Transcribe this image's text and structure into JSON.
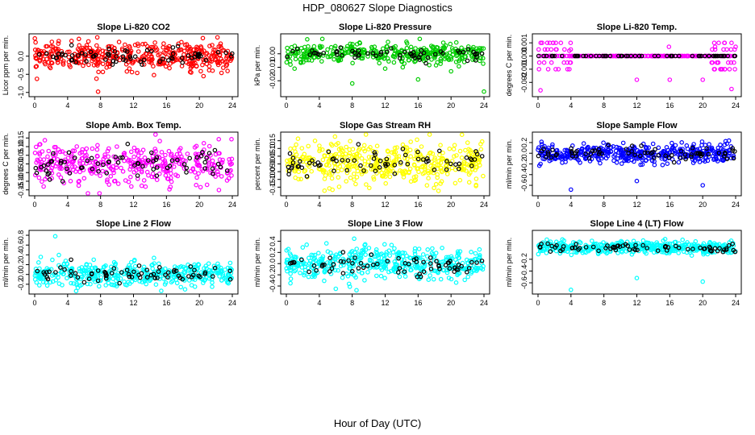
{
  "title": "HDP_080627  Slope Diagnostics",
  "xlabel": "Hour of Day (UTC)",
  "colors": {
    "highlight": "#000000",
    "frame": "#000000"
  },
  "chart_data": [
    {
      "type": "scatter",
      "title": "Slope Li-820 CO2",
      "ylabel": "Licor ppm per min.",
      "color": "#ff0000",
      "xlim": [
        0,
        24
      ],
      "ylim": [
        -1.05,
        0.55
      ],
      "xticks": [
        0,
        4,
        8,
        12,
        16,
        20,
        24
      ],
      "yticks": [
        -1.0,
        -0.5,
        0.0
      ],
      "spread": 0.18,
      "n": 420,
      "highlight_n": 70,
      "outliers": [
        [
          7.5,
          -0.62
        ],
        [
          7.7,
          -0.98
        ],
        [
          7.6,
          0.52
        ],
        [
          19.0,
          -0.45
        ],
        [
          20.5,
          -0.55
        ],
        [
          11.2,
          -0.42
        ]
      ]
    },
    {
      "type": "scatter",
      "title": "Slope Li-820 Pressure",
      "ylabel": "kPa per min.",
      "color": "#00cc00",
      "xlim": [
        0,
        24
      ],
      "ylim": [
        -0.03,
        0.013
      ],
      "xticks": [
        0,
        4,
        8,
        12,
        16,
        20,
        24
      ],
      "yticks": [
        -0.02,
        -0.01,
        0.0
      ],
      "spread": 0.0035,
      "n": 380,
      "highlight_n": 60,
      "outliers": [
        [
          8.0,
          -0.022
        ],
        [
          16.0,
          -0.019
        ],
        [
          20.0,
          -0.013
        ],
        [
          24.0,
          -0.028
        ],
        [
          0.5,
          -0.008
        ],
        [
          1.0,
          -0.011
        ],
        [
          12.0,
          -0.011
        ],
        [
          16.2,
          0.011
        ]
      ]
    },
    {
      "type": "scatter",
      "title": "Slope Li-820 Temp.",
      "ylabel": "degrees C per min.",
      "color": "#ff00ff",
      "xlim": [
        0,
        24
      ],
      "ylim": [
        -0.0029,
        0.0015
      ],
      "xticks": [
        0,
        4,
        8,
        12,
        16,
        20,
        24
      ],
      "yticks": [
        -0.002,
        -0.001,
        0.0,
        0.001
      ],
      "spread": 0.0,
      "n": 300,
      "highlight_n": 60,
      "quantized": true,
      "outliers": [
        [
          0.3,
          -0.0026
        ],
        [
          12.0,
          -0.0018
        ],
        [
          16.0,
          -0.0018
        ],
        [
          20.0,
          -0.0018
        ],
        [
          23.5,
          -0.0025
        ],
        [
          0.5,
          0.001
        ],
        [
          15.9,
          0.0007
        ],
        [
          21.5,
          0.0007
        ],
        [
          24.0,
          0.0007
        ],
        [
          3.8,
          0.0004
        ]
      ]
    },
    {
      "type": "scatter",
      "title": "Slope Amb. Box Temp.",
      "ylabel": "degrees C per min.",
      "color": "#ff00ff",
      "xlim": [
        0,
        24
      ],
      "ylim": [
        -0.17,
        0.17
      ],
      "xticks": [
        0,
        4,
        8,
        12,
        16,
        20,
        24
      ],
      "yticks": [
        -0.15,
        -0.1,
        -0.05,
        0.0,
        0.05,
        0.1,
        0.15
      ],
      "spread": 0.06,
      "n": 380,
      "highlight_n": 70,
      "outliers": []
    },
    {
      "type": "scatter",
      "title": "Slope Gas Stream RH",
      "ylabel": "percent per min.",
      "color": "#ffff00",
      "xlim": [
        0,
        24
      ],
      "ylim": [
        -0.19,
        0.19
      ],
      "xticks": [
        0,
        4,
        8,
        12,
        16,
        20,
        24
      ],
      "yticks": [
        -0.15,
        -0.1,
        -0.05,
        0.0,
        0.05,
        0.1,
        0.15
      ],
      "spread": 0.065,
      "n": 440,
      "highlight_n": 70,
      "outliers": []
    },
    {
      "type": "scatter",
      "title": "Slope Sample Flow",
      "ylabel": "ml/min per min.",
      "color": "#0000ff",
      "xlim": [
        0,
        24
      ],
      "ylim": [
        -0.75,
        0.35
      ],
      "xticks": [
        0,
        4,
        8,
        12,
        16,
        20,
        24
      ],
      "yticks": [
        -0.6,
        -0.4,
        -0.2,
        0.0,
        0.2
      ],
      "spread": 0.09,
      "n": 420,
      "highlight_n": 70,
      "outliers": [
        [
          4.0,
          -0.68
        ],
        [
          20.0,
          -0.6
        ],
        [
          12.0,
          -0.52
        ],
        [
          0.3,
          -0.2
        ]
      ]
    },
    {
      "type": "scatter",
      "title": "Slope Line 2 Flow",
      "ylabel": "ml/min per min.",
      "color": "#00ffff",
      "xlim": [
        0,
        24
      ],
      "ylim": [
        -0.35,
        0.85
      ],
      "xticks": [
        0,
        4,
        8,
        12,
        16,
        20,
        24
      ],
      "yticks": [
        -0.2,
        0.0,
        0.2,
        0.4,
        0.6,
        0.8
      ],
      "spread": 0.12,
      "n": 420,
      "highlight_n": 70,
      "outliers": [
        [
          2.5,
          0.78
        ]
      ]
    },
    {
      "type": "scatter",
      "title": "Slope Line 3 Flow",
      "ylabel": "ml/min per min.",
      "color": "#00ffff",
      "xlim": [
        0,
        24
      ],
      "ylim": [
        -0.5,
        0.55
      ],
      "xticks": [
        0,
        4,
        8,
        12,
        16,
        20,
        24
      ],
      "yticks": [
        -0.4,
        -0.2,
        0.0,
        0.2,
        0.4
      ],
      "spread": 0.14,
      "n": 440,
      "highlight_n": 70,
      "outliers": [
        [
          6.0,
          -0.45
        ],
        [
          0.5,
          -0.35
        ]
      ]
    },
    {
      "type": "scatter",
      "title": "Slope Line 4 (LT) Flow",
      "ylabel": "ml/min per min.",
      "color": "#00ffff",
      "xlim": [
        0,
        24
      ],
      "ylim": [
        -0.75,
        0.25
      ],
      "xticks": [
        0,
        4,
        8,
        12,
        16,
        20,
        24
      ],
      "yticks": [
        -0.6,
        -0.4,
        -0.2
      ],
      "spread": 0.05,
      "n": 420,
      "highlight_n": 70,
      "outliers": [
        [
          4.0,
          -0.72
        ],
        [
          12.0,
          -0.52
        ],
        [
          20.0,
          -0.58
        ]
      ]
    }
  ]
}
